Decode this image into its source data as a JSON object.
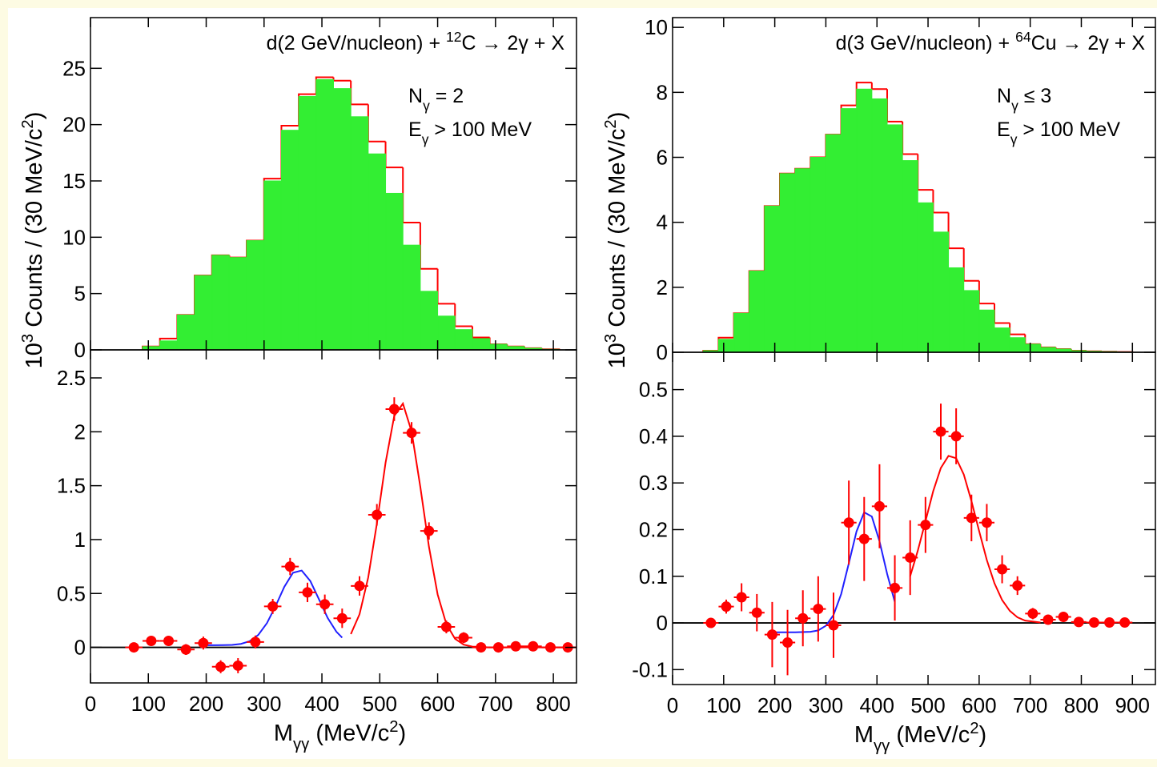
{
  "chart_data": [
    {
      "type": "histogram",
      "title": [
        {
          "text": "d(2 GeV/nucleon) + "
        },
        {
          "sup": "12"
        },
        {
          "text": "C → 2γ + X"
        }
      ],
      "ylabel": [
        {
          "text": "10"
        },
        {
          "sup": "3"
        },
        {
          "text": " Counts / (30 MeV/c"
        },
        {
          "sup": "2"
        },
        {
          "text": ")"
        }
      ],
      "annotations": [
        [
          {
            "text": "N"
          },
          {
            "sub": "γ"
          },
          {
            "text": " = 2"
          }
        ],
        [
          {
            "text": "E"
          },
          {
            "sub": "γ"
          },
          {
            "text": " > 100 MeV"
          }
        ]
      ],
      "xlim": [
        0,
        840
      ],
      "ylim": [
        0,
        29.5
      ],
      "yticks": [
        0,
        5,
        10,
        15,
        20,
        25
      ],
      "bins": [
        90,
        120,
        150,
        180,
        210,
        240,
        270,
        300,
        330,
        360,
        390,
        420,
        450,
        480,
        510,
        540,
        570,
        600,
        630,
        660,
        690,
        720,
        750,
        780,
        810
      ],
      "series": [
        {
          "color": "#ff0000",
          "style": "step",
          "values": [
            0.3,
            1.0,
            3.1,
            6.6,
            8.4,
            8.2,
            9.7,
            15.2,
            19.9,
            22.7,
            24.2,
            23.9,
            21.8,
            18.5,
            16.2,
            11.3,
            7.2,
            4.1,
            2.1,
            1.1,
            0.5,
            0.3,
            0.15,
            0.05
          ]
        },
        {
          "color": "#33ee33",
          "style": "fill",
          "values": [
            0.3,
            0.8,
            3.1,
            6.6,
            8.4,
            8.2,
            9.7,
            15.0,
            19.5,
            22.5,
            24.0,
            23.2,
            20.7,
            17.4,
            13.9,
            9.3,
            5.2,
            3.0,
            1.8,
            1.0,
            0.5,
            0.3,
            0.15,
            0.05
          ]
        }
      ]
    },
    {
      "type": "scatter",
      "xlabel": [
        {
          "text": "M"
        },
        {
          "sub": "γγ"
        },
        {
          "text": " (MeV/c"
        },
        {
          "sup": "2"
        },
        {
          "text": ")"
        }
      ],
      "xlim": [
        0,
        840
      ],
      "ylim": [
        -0.33,
        2.76
      ],
      "xticks": [
        0,
        100,
        200,
        300,
        400,
        500,
        600,
        700,
        800
      ],
      "yticks": [
        0,
        0.5,
        1,
        1.5,
        2,
        2.5
      ],
      "zero_line": true,
      "xerr": 15,
      "x": [
        75,
        105,
        135,
        165,
        195,
        225,
        255,
        285,
        315,
        345,
        375,
        405,
        435,
        465,
        495,
        525,
        555,
        585,
        615,
        645,
        675,
        705,
        735,
        765,
        795,
        825
      ],
      "series": [
        {
          "color": "#ff0000",
          "values": [
            0,
            0.06,
            0.06,
            -0.02,
            0.04,
            -0.18,
            -0.17,
            0.05,
            0.38,
            0.75,
            0.51,
            0.4,
            0.27,
            0.57,
            1.23,
            2.21,
            1.99,
            1.08,
            0.19,
            0.09,
            0,
            0,
            0.01,
            0.01,
            0,
            0
          ],
          "errors": [
            0.02,
            0.03,
            0.03,
            0.05,
            0.06,
            0.06,
            0.07,
            0.06,
            0.07,
            0.08,
            0.09,
            0.09,
            0.09,
            0.09,
            0.1,
            0.11,
            0.1,
            0.08,
            0.06,
            0.05,
            0.02,
            0.02,
            0.02,
            0.02,
            0.02,
            0.02
          ]
        }
      ],
      "fits": [
        {
          "color": "#2020ff",
          "x": [
            200,
            215,
            230,
            245,
            260,
            275,
            290,
            305,
            320,
            335,
            350,
            365,
            380,
            395,
            410,
            425,
            435
          ],
          "values": [
            0.02,
            0.02,
            0.021,
            0.023,
            0.032,
            0.057,
            0.115,
            0.225,
            0.384,
            0.562,
            0.692,
            0.713,
            0.615,
            0.445,
            0.272,
            0.145,
            0.09
          ]
        },
        {
          "color": "#ff0000",
          "x": [
            450,
            465,
            480,
            495,
            510,
            525,
            540,
            555,
            570,
            585,
            600,
            615,
            630,
            645,
            660,
            690,
            720,
            750,
            780,
            830
          ],
          "values": [
            0.123,
            0.307,
            0.648,
            1.149,
            1.713,
            2.147,
            2.262,
            2.003,
            1.491,
            0.933,
            0.491,
            0.217,
            0.08,
            0.025,
            0.007,
            0,
            0,
            0,
            0,
            0
          ]
        }
      ]
    },
    {
      "type": "histogram",
      "title": [
        {
          "text": "d(3 GeV/nucleon) + "
        },
        {
          "sup": "64"
        },
        {
          "text": "Cu → 2γ + X"
        }
      ],
      "ylabel": [
        {
          "text": "10"
        },
        {
          "sup": "3"
        },
        {
          "text": " Counts / (30 MeV/c"
        },
        {
          "sup": "2"
        },
        {
          "text": ")"
        }
      ],
      "annotations": [
        [
          {
            "text": "N"
          },
          {
            "sub": "γ"
          },
          {
            "text": " ≤  3"
          }
        ],
        [
          {
            "text": "E"
          },
          {
            "sub": "γ"
          },
          {
            "text": " > 100 MeV"
          }
        ]
      ],
      "xlim": [
        0,
        945
      ],
      "ylim": [
        0,
        10.3
      ],
      "yticks": [
        0,
        2,
        4,
        6,
        8,
        10
      ],
      "bins": [
        60,
        90,
        120,
        150,
        180,
        210,
        240,
        270,
        300,
        330,
        360,
        390,
        420,
        450,
        480,
        510,
        540,
        570,
        600,
        630,
        660,
        690,
        720,
        750,
        780,
        810,
        840,
        870,
        900
      ],
      "series": [
        {
          "color": "#ff0000",
          "style": "step",
          "values": [
            0.05,
            0.45,
            1.2,
            2.5,
            4.5,
            5.5,
            5.65,
            6.0,
            6.7,
            7.6,
            8.3,
            8.1,
            7.1,
            6.1,
            5.0,
            4.3,
            3.2,
            2.2,
            1.5,
            0.9,
            0.55,
            0.25,
            0.15,
            0.1,
            0.05,
            0.03,
            0.02,
            0.01
          ]
        },
        {
          "color": "#33ee33",
          "style": "fill",
          "values": [
            0.05,
            0.4,
            1.2,
            2.5,
            4.5,
            5.5,
            5.65,
            6.0,
            6.7,
            7.5,
            8.1,
            7.8,
            7.0,
            5.9,
            4.6,
            3.7,
            2.6,
            1.9,
            1.3,
            0.75,
            0.45,
            0.25,
            0.15,
            0.1,
            0.05,
            0.03,
            0.02,
            0.01
          ]
        }
      ]
    },
    {
      "type": "scatter",
      "xlabel": [
        {
          "text": "M"
        },
        {
          "sub": "γγ"
        },
        {
          "text": " (MeV/c"
        },
        {
          "sup": "2"
        },
        {
          "text": ")"
        }
      ],
      "xlim": [
        0,
        945
      ],
      "ylim": [
        -0.132,
        0.58
      ],
      "xticks": [
        0,
        100,
        200,
        300,
        400,
        500,
        600,
        700,
        800,
        900
      ],
      "yticks": [
        -0.1,
        0,
        0.1,
        0.2,
        0.3,
        0.4,
        0.5
      ],
      "zero_line": true,
      "xerr": 15,
      "x": [
        75,
        105,
        135,
        165,
        195,
        225,
        255,
        285,
        315,
        345,
        375,
        405,
        435,
        465,
        495,
        525,
        555,
        585,
        615,
        645,
        675,
        705,
        735,
        765,
        795,
        825,
        855,
        885
      ],
      "series": [
        {
          "color": "#ff0000",
          "values": [
            0,
            0.035,
            0.055,
            0.022,
            -0.025,
            -0.042,
            0.01,
            0.03,
            -0.005,
            0.215,
            0.18,
            0.25,
            0.075,
            0.14,
            0.21,
            0.41,
            0.4,
            0.225,
            0.215,
            0.115,
            0.08,
            0.02,
            0.007,
            0.013,
            0.002,
            0.001,
            0.001,
            0.001
          ],
          "errors": [
            0.005,
            0.015,
            0.03,
            0.04,
            0.07,
            0.07,
            0.06,
            0.07,
            0.07,
            0.09,
            0.09,
            0.09,
            0.07,
            0.08,
            0.06,
            0.06,
            0.06,
            0.05,
            0.04,
            0.03,
            0.02,
            0.012,
            0.006,
            0.006,
            0.004,
            0.004,
            0.004,
            0.004
          ]
        }
      ],
      "fits": [
        {
          "color": "#2020ff",
          "x": [
            195,
            240,
            270,
            285,
            300,
            315,
            330,
            345,
            360,
            375,
            390,
            405,
            420,
            435
          ],
          "values": [
            -0.02,
            -0.02,
            -0.019,
            -0.016,
            -0.006,
            0.017,
            0.062,
            0.128,
            0.196,
            0.237,
            0.228,
            0.175,
            0.105,
            0.045
          ]
        },
        {
          "color": "#ff0000",
          "x": [
            465,
            480,
            495,
            510,
            525,
            540,
            555,
            570,
            585,
            600,
            615,
            630,
            645,
            660,
            675,
            690,
            720
          ],
          "values": [
            0.1,
            0.155,
            0.218,
            0.282,
            0.332,
            0.358,
            0.353,
            0.318,
            0.261,
            0.197,
            0.135,
            0.085,
            0.049,
            0.026,
            0.012,
            0.005,
            0.001
          ]
        }
      ]
    }
  ]
}
